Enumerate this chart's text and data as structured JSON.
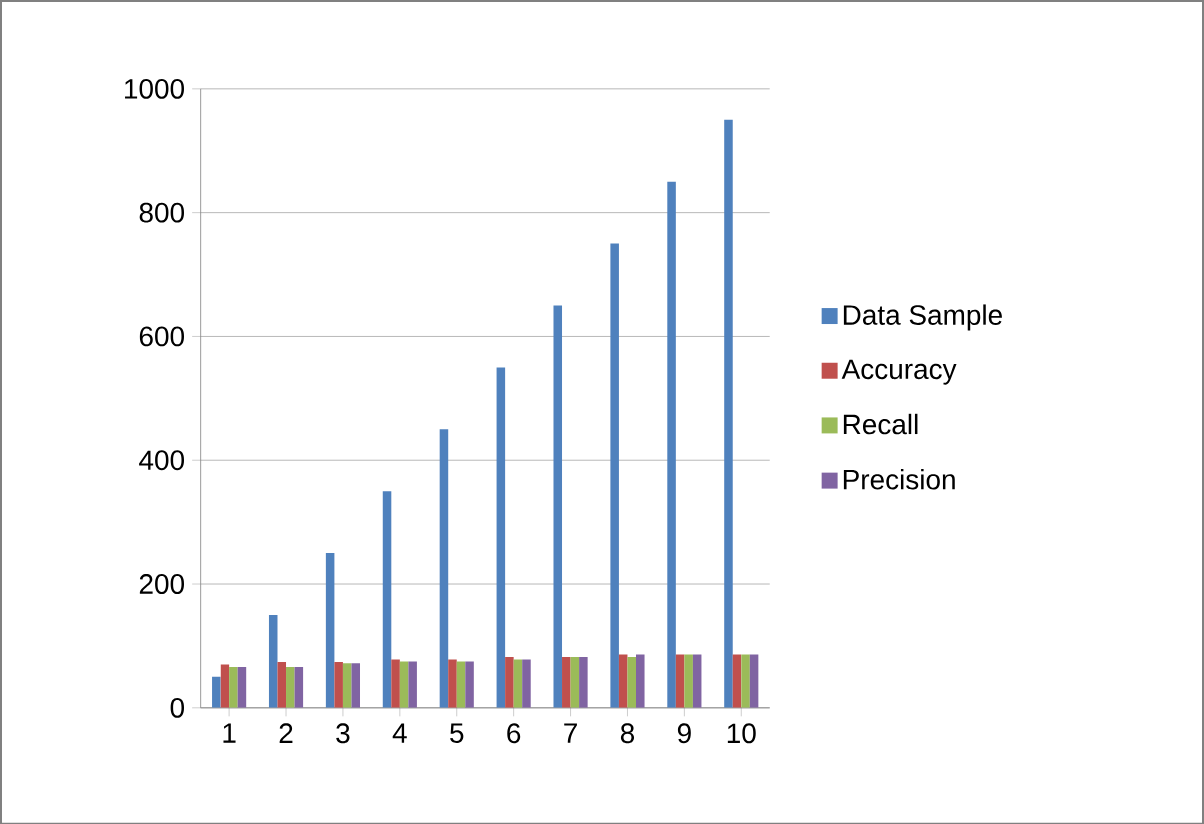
{
  "chart_data": {
    "type": "bar",
    "categories": [
      "1",
      "2",
      "3",
      "4",
      "5",
      "6",
      "7",
      "8",
      "9",
      "10"
    ],
    "series": [
      {
        "name": "Data Sample",
        "color": "#4f81bd",
        "values": [
          50,
          150,
          250,
          350,
          450,
          550,
          650,
          750,
          850,
          950
        ]
      },
      {
        "name": "Accuracy",
        "color": "#c0504d",
        "values": [
          70,
          74,
          74,
          78,
          78,
          82,
          82,
          86,
          86,
          86
        ]
      },
      {
        "name": "Recall",
        "color": "#9bbb59",
        "values": [
          66,
          66,
          72,
          75,
          75,
          78,
          82,
          82,
          86,
          86
        ]
      },
      {
        "name": "Precision",
        "color": "#8064a2",
        "values": [
          66,
          66,
          72,
          75,
          75,
          78,
          82,
          86,
          86,
          86
        ]
      }
    ],
    "ylim": [
      0,
      1000
    ],
    "yticks": [
      0,
      200,
      400,
      600,
      800,
      1000
    ],
    "grid": "y",
    "legend": "right"
  }
}
